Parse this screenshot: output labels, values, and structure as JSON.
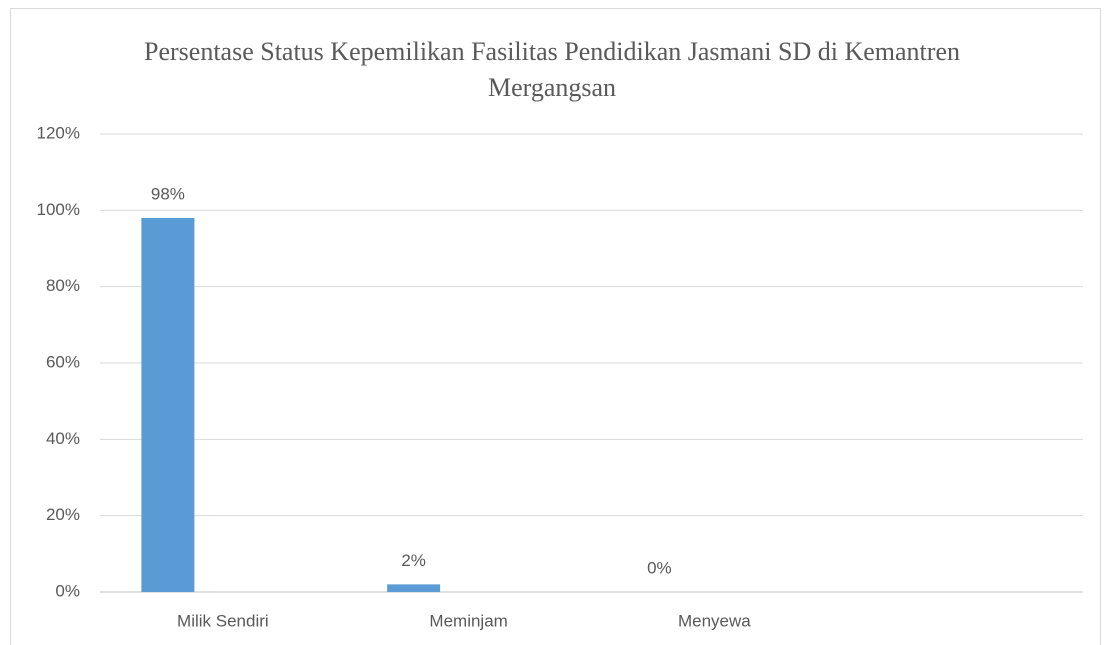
{
  "chart_data": {
    "type": "bar",
    "title": "Persentase Status Kepemilikan Fasilitas Pendidikan Jasmani SD di Kemantren Mergangsan",
    "categories": [
      "Milik Sendiri",
      "Meminjam",
      "Menyewa"
    ],
    "values": [
      98,
      2,
      0
    ],
    "value_labels": [
      "98%",
      "2%",
      "0%"
    ],
    "color": "#5b9bd5",
    "ylim": [
      0,
      120
    ],
    "yticks": [
      {
        "value": 0,
        "label": "0%"
      },
      {
        "value": 20,
        "label": "20%"
      },
      {
        "value": 40,
        "label": "40%"
      },
      {
        "value": 60,
        "label": "60%"
      },
      {
        "value": 80,
        "label": "80%"
      },
      {
        "value": 100,
        "label": "100%"
      },
      {
        "value": 120,
        "label": "120%"
      }
    ],
    "grid": true
  }
}
